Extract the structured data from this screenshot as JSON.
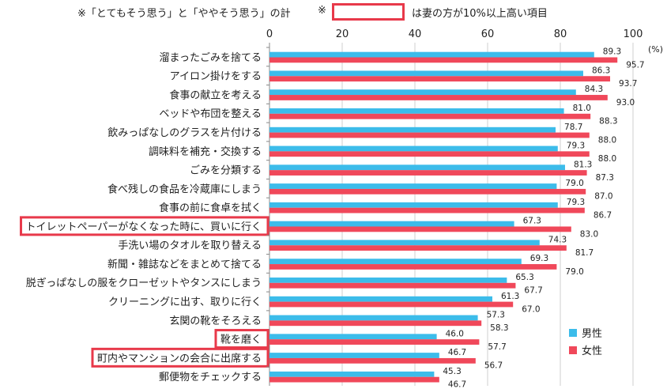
{
  "header": {
    "note1": "※「とてもそう思う」と「ややそう思う」の計",
    "note2_mark": "※",
    "note2_text": "は妻の方が10%以上高い項目"
  },
  "chart_data": {
    "type": "bar",
    "orientation": "horizontal",
    "unit_label": "(%)",
    "xlim": [
      0,
      100
    ],
    "x_ticks": [
      0,
      20,
      40,
      60,
      80,
      100
    ],
    "grid": true,
    "legend_position": "bottom-right",
    "colors": {
      "male": "#3cbcea",
      "female": "#f0485a",
      "highlight": "#e8394a"
    },
    "categories": [
      "溜まったごみを捨てる",
      "アイロン掛けをする",
      "食事の献立を考える",
      "ベッドや布団を整える",
      "飲みっぱなしのグラスを片付ける",
      "調味料を補充・交換する",
      "ごみを分類する",
      "食べ残しの食品を冷蔵庫にしまう",
      "食事の前に食卓を拭く",
      "トイレットペーパーがなくなった時に、買いに行く",
      "手洗い場のタオルを取り替える",
      "新聞・雑誌などをまとめて捨てる",
      "脱ぎっぱなしの服をクローゼットやタンスにしまう",
      "クリーニングに出す、取りに行く",
      "玄関の靴をそろえる",
      "靴を磨く",
      "町内やマンションの会合に出席する",
      "郵便物をチェックする"
    ],
    "highlighted": [
      "トイレットペーパーがなくなった時に、買いに行く",
      "靴を磨く",
      "町内やマンションの会合に出席する"
    ],
    "series": [
      {
        "name": "男性",
        "values": [
          89.3,
          86.3,
          84.3,
          81.0,
          78.7,
          79.3,
          81.3,
          79.0,
          79.3,
          67.3,
          74.3,
          69.3,
          65.3,
          61.3,
          57.3,
          46.0,
          46.7,
          45.3
        ],
        "labels": [
          "89.3",
          "86.3",
          "84.3",
          "81.0",
          "78.7",
          "79.3",
          "81.3",
          "79.0",
          "79.3",
          "67.3",
          "74.3",
          "69.3",
          "65.3",
          "61.3",
          "57.3",
          "46.0",
          "46.7",
          "45.3"
        ]
      },
      {
        "name": "女性",
        "values": [
          95.7,
          93.7,
          93.0,
          88.3,
          88.0,
          88.0,
          87.3,
          87.0,
          86.7,
          83.0,
          81.7,
          79.0,
          67.7,
          67.0,
          58.3,
          57.7,
          56.7,
          46.7
        ],
        "labels": [
          "95.7",
          "93.7",
          "93.0",
          "88.3",
          "88.0",
          "88.0",
          "87.3",
          "87.0",
          "86.7",
          "83.0",
          "81.7",
          "79.0",
          "67.7",
          "67.0",
          "58.3",
          "57.7",
          "56.7",
          "46.7"
        ]
      }
    ]
  }
}
